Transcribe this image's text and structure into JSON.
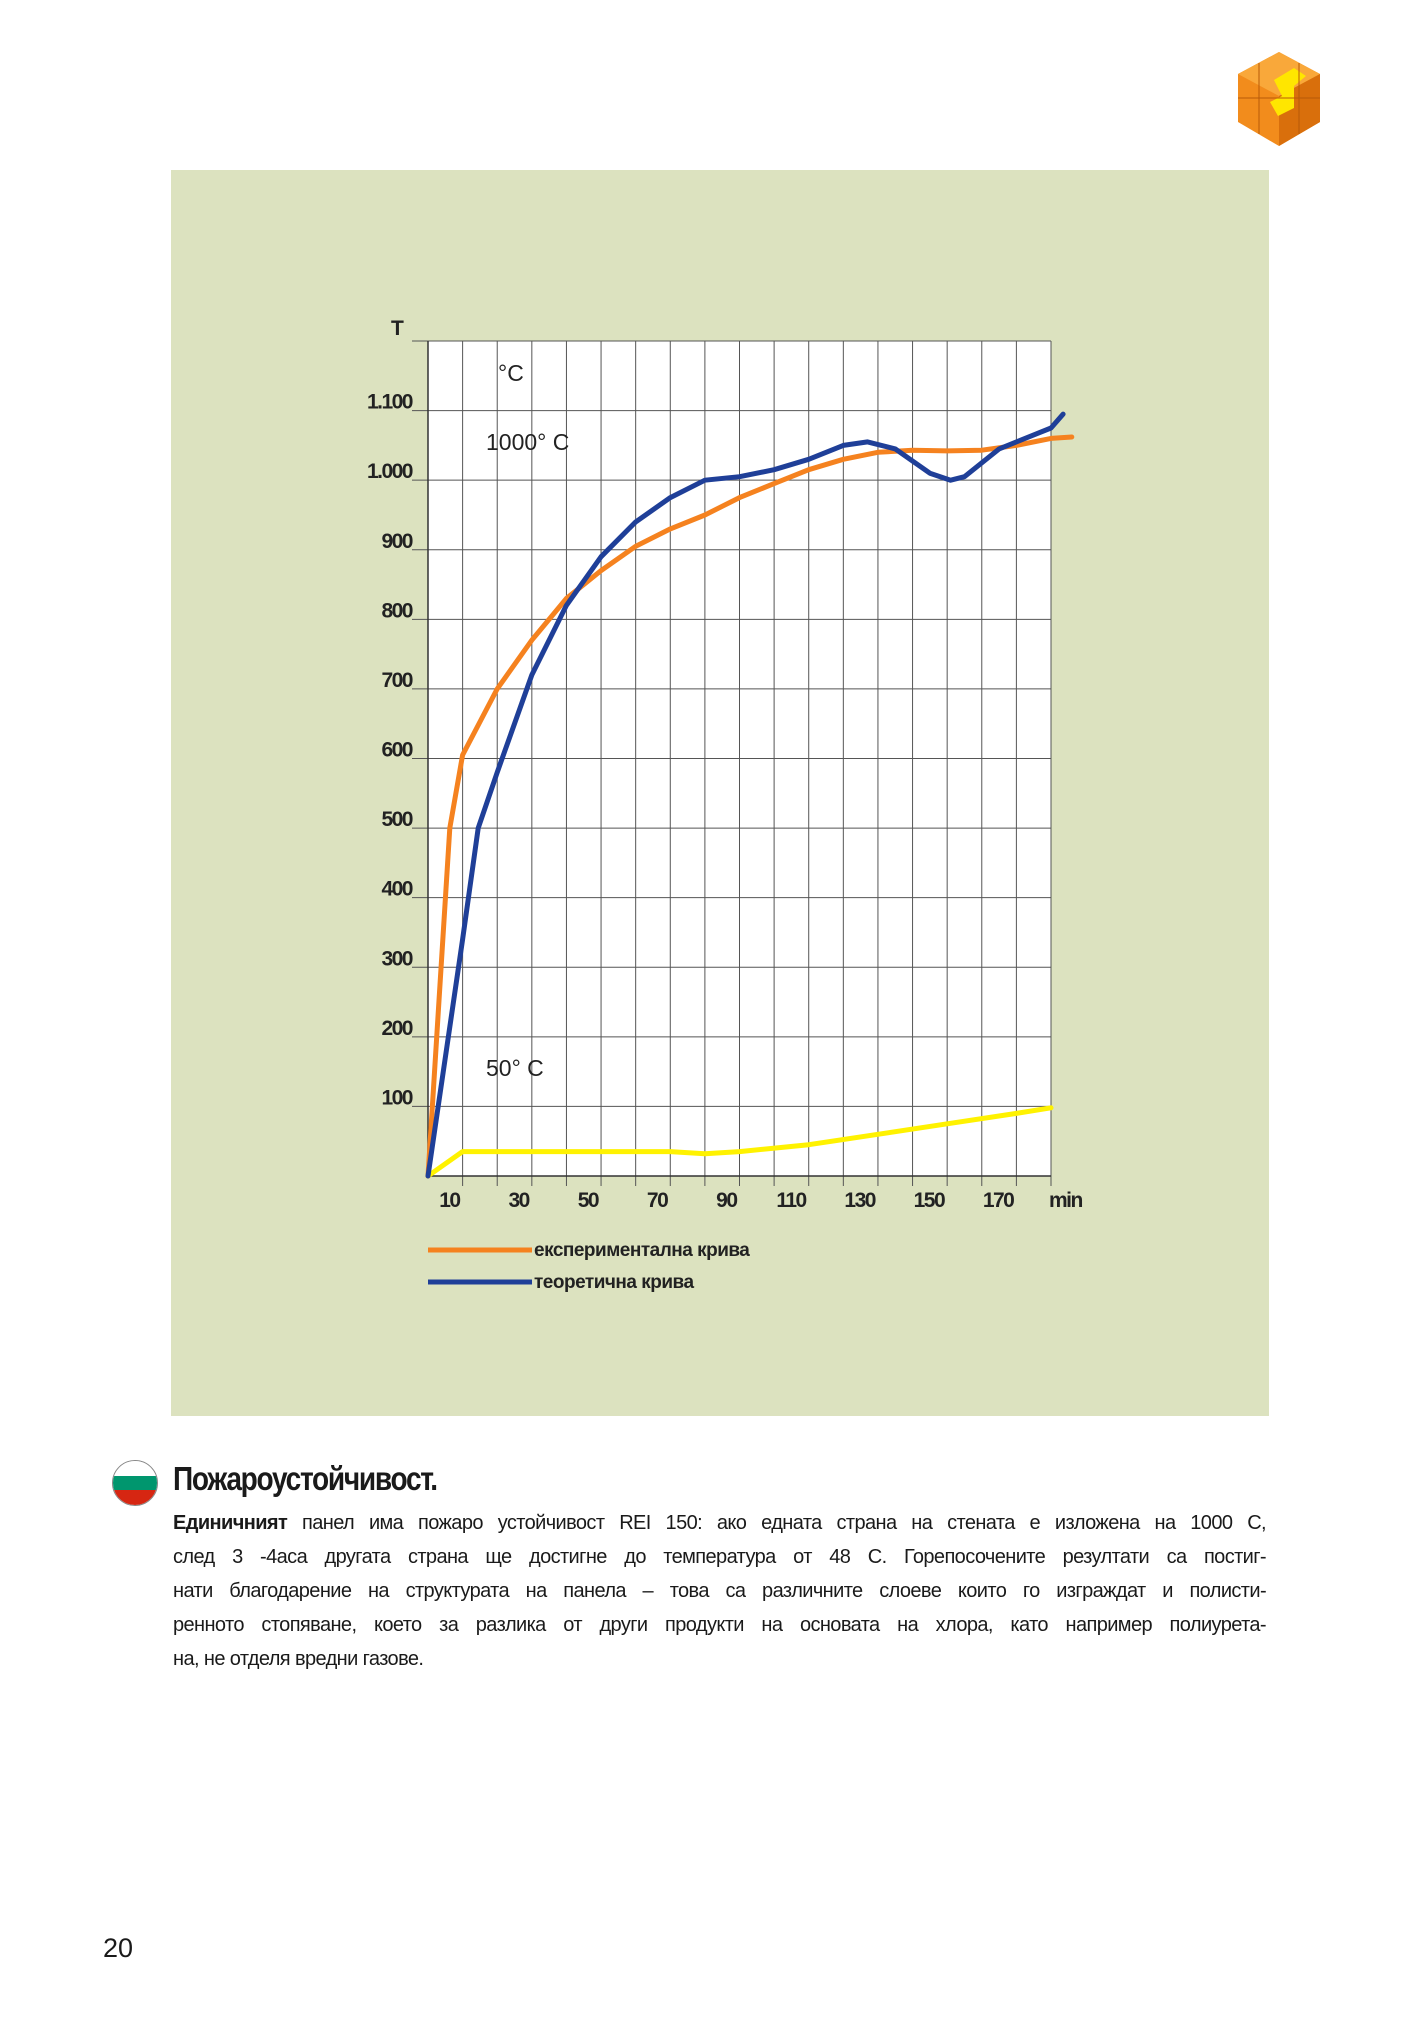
{
  "chart_data": {
    "type": "line",
    "y_axis_title": "T",
    "unit_label": "°C",
    "annotations": [
      "1000° C",
      "50° C"
    ],
    "x_unit": "min",
    "xlim": [
      0,
      180
    ],
    "ylim": [
      0,
      1200
    ],
    "x_ticks": [
      10,
      30,
      50,
      70,
      90,
      110,
      130,
      150,
      170
    ],
    "x_tick_labels": [
      "10",
      "30",
      "50",
      "70",
      "90",
      "110",
      "130",
      "150",
      "170"
    ],
    "y_ticks": [
      100,
      200,
      300,
      400,
      500,
      600,
      700,
      800,
      900,
      1000,
      1100
    ],
    "y_tick_labels": [
      "100",
      "200",
      "300",
      "400",
      "500",
      "600",
      "700",
      "800",
      "900",
      "1.000",
      "1.100"
    ],
    "grid": true,
    "legend_placement": "bottom-left",
    "series": [
      {
        "name": "експериментална крива",
        "color": "#f5821f",
        "points": [
          [
            0,
            0
          ],
          [
            6.3,
            500
          ],
          [
            10,
            605
          ],
          [
            20,
            700
          ],
          [
            30,
            770
          ],
          [
            40,
            830
          ],
          [
            50,
            870
          ],
          [
            60,
            905
          ],
          [
            70,
            930
          ],
          [
            80,
            950
          ],
          [
            90,
            975
          ],
          [
            100,
            995
          ],
          [
            110,
            1015
          ],
          [
            120,
            1030
          ],
          [
            130,
            1040
          ],
          [
            140,
            1043
          ],
          [
            150,
            1042
          ],
          [
            160,
            1043
          ],
          [
            170,
            1050
          ],
          [
            180,
            1060
          ],
          [
            186,
            1062
          ]
        ]
      },
      {
        "name": "теоретична крива",
        "color": "#1f3f98",
        "points": [
          [
            0,
            0
          ],
          [
            10,
            340
          ],
          [
            14.5,
            500
          ],
          [
            20,
            580
          ],
          [
            30,
            720
          ],
          [
            40,
            820
          ],
          [
            50,
            890
          ],
          [
            60,
            940
          ],
          [
            70,
            975
          ],
          [
            80,
            1000
          ],
          [
            90,
            1005
          ],
          [
            100,
            1015
          ],
          [
            110,
            1030
          ],
          [
            120,
            1050
          ],
          [
            127,
            1055
          ],
          [
            135,
            1045
          ],
          [
            145,
            1010
          ],
          [
            151,
            1000
          ],
          [
            155,
            1005
          ],
          [
            165,
            1045
          ],
          [
            175,
            1065
          ],
          [
            180,
            1075
          ],
          [
            183.5,
            1095
          ]
        ]
      },
      {
        "color": "#fff200",
        "points": [
          [
            0,
            0
          ],
          [
            10,
            35
          ],
          [
            50,
            35
          ],
          [
            70,
            35
          ],
          [
            80,
            32
          ],
          [
            90,
            35
          ],
          [
            110,
            45
          ],
          [
            130,
            60
          ],
          [
            150,
            75
          ],
          [
            170,
            90
          ],
          [
            180,
            98
          ]
        ]
      }
    ]
  },
  "text": {
    "heading": "Пожароустойчивост.",
    "lead_word": "Единичният",
    "lines": [
      " панел има пожаро устойчивост REI 150: ако едната страна на стената е изложена на 1000 C,",
      "след 3 -4аса другата страна ще достигне до температура от 48 C. Горепосочените резултати са постиг-",
      "нати благодарение на структурата на панела – това са различните слоеве които го изграждат и полисти-",
      "ренното стопяване, което за разлика от други продукти на основата на хлора, като например полиурета-",
      "на, не отделя вредни газове."
    ]
  },
  "flag_colors": [
    "#ffffff",
    "#00966e",
    "#d62612"
  ],
  "page_number": "20",
  "logo": {
    "icon": "orange-cube-logo",
    "colors": [
      "#f28c1c",
      "#ffe600"
    ]
  }
}
